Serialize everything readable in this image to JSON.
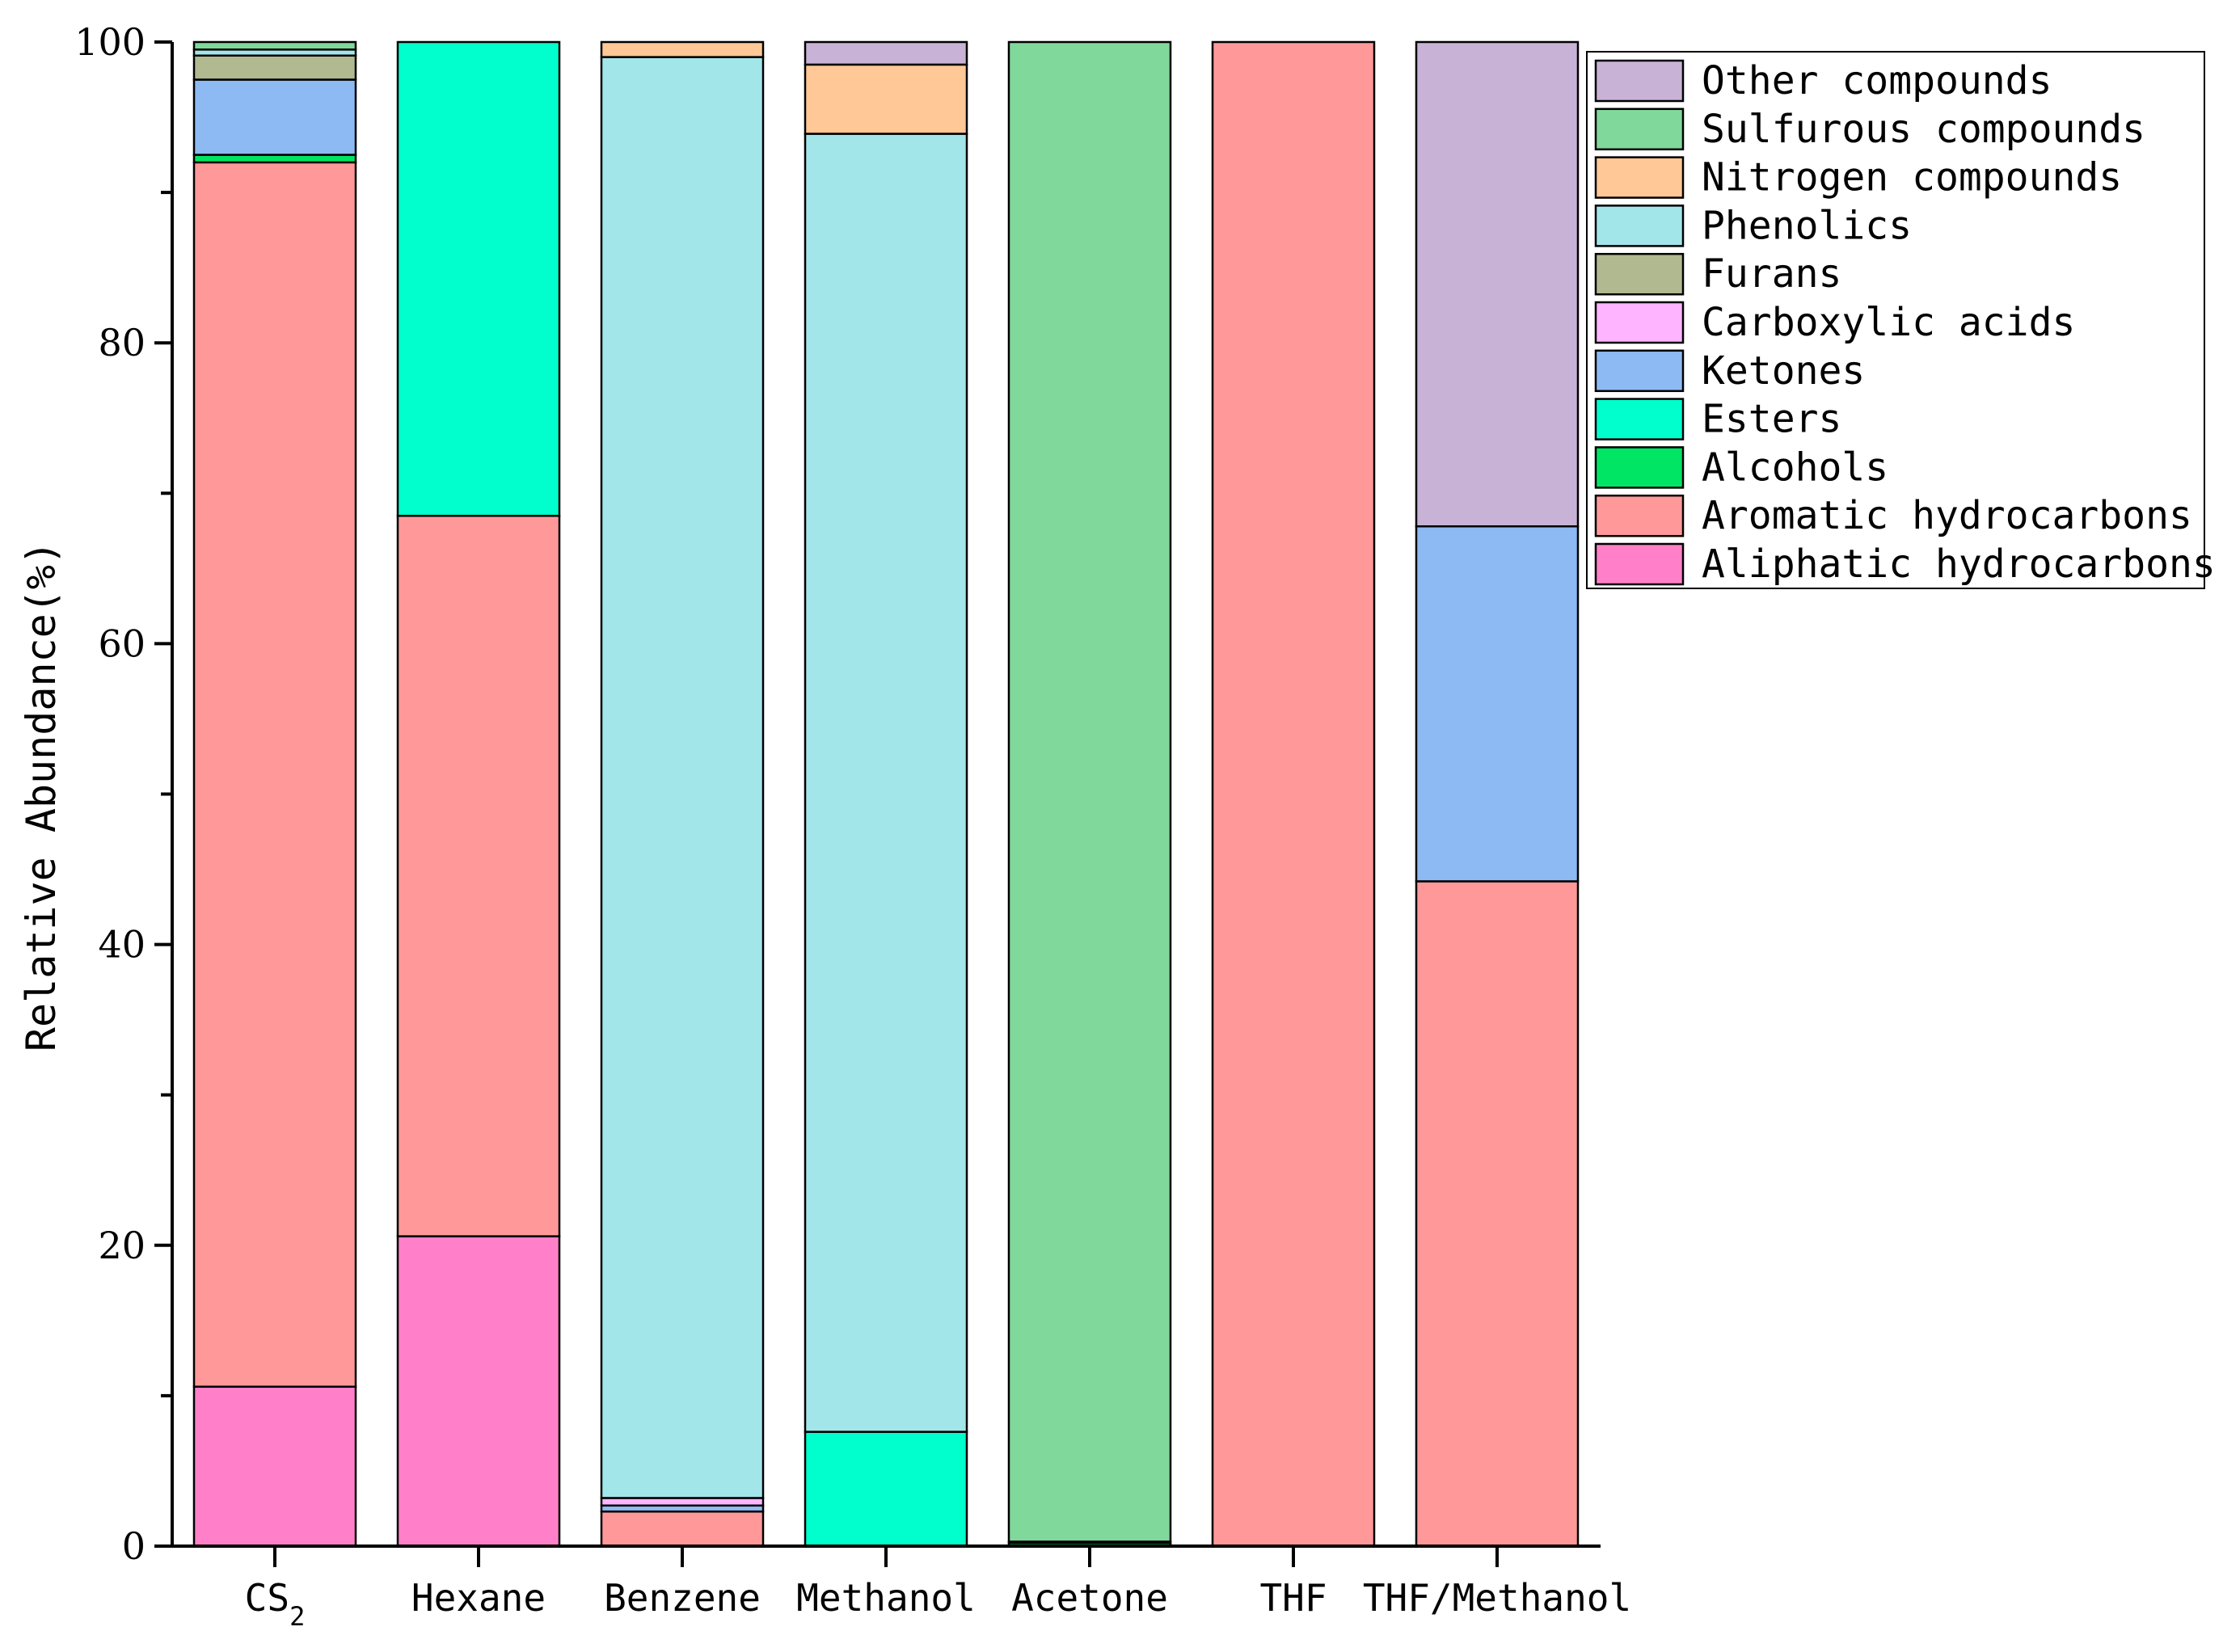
{
  "chart_data": {
    "type": "bar",
    "stacked": true,
    "title": "",
    "xlabel": "",
    "ylabel": "Relative Abundance(%)",
    "ylim": [
      0,
      100
    ],
    "yticks": [
      0,
      20,
      40,
      60,
      80,
      100
    ],
    "grid": false,
    "legend_position": "top-right",
    "categories": [
      "CS2",
      "Hexane",
      "Benzene",
      "Methanol",
      "Acetone",
      "THF",
      "THF/Methanol"
    ],
    "category_labels": [
      {
        "main": "CS",
        "sub": "2"
      },
      {
        "main": "Hexane",
        "sub": ""
      },
      {
        "main": "Benzene",
        "sub": ""
      },
      {
        "main": "Methanol",
        "sub": ""
      },
      {
        "main": "Acetone",
        "sub": ""
      },
      {
        "main": "THF",
        "sub": ""
      },
      {
        "main": "THF/Methanol",
        "sub": ""
      }
    ],
    "series": [
      {
        "name": "Aliphatic hydrocarbons",
        "color": "#FF80C8",
        "values": [
          10.6,
          20.6,
          0,
          0,
          0,
          0,
          0
        ]
      },
      {
        "name": "Aromatic hydrocarbons",
        "color": "#FF9999",
        "values": [
          81.4,
          47.9,
          2.3,
          0,
          0,
          100,
          44.2
        ]
      },
      {
        "name": "Alcohols",
        "color": "#00E564",
        "values": [
          0.5,
          0,
          0,
          0,
          0.2,
          0,
          0
        ]
      },
      {
        "name": "Esters",
        "color": "#00FFCC",
        "values": [
          0,
          31.5,
          0,
          7.6,
          0,
          0,
          0
        ]
      },
      {
        "name": "Ketones",
        "color": "#8EBAF3",
        "values": [
          5.0,
          0,
          0.4,
          0,
          0,
          0,
          23.6
        ]
      },
      {
        "name": "Carboxylic acids",
        "color": "#FFB4FF",
        "values": [
          0,
          0,
          0.5,
          0,
          0,
          0,
          0
        ]
      },
      {
        "name": "Furans",
        "color": "#B0B990",
        "values": [
          1.6,
          0,
          0,
          0,
          0.1,
          0,
          0
        ]
      },
      {
        "name": "Phenolics",
        "color": "#A3E6EA",
        "values": [
          0.4,
          0,
          95.8,
          86.3,
          0,
          0,
          0
        ]
      },
      {
        "name": "Nitrogen compounds",
        "color": "#FFC896",
        "values": [
          0,
          0,
          1.0,
          4.6,
          0,
          0,
          0
        ]
      },
      {
        "name": "Sulfurous compounds",
        "color": "#80D89A",
        "values": [
          0.5,
          0,
          0,
          0,
          99.7,
          0,
          0
        ]
      },
      {
        "name": "Other compounds",
        "color": "#C8B3D7",
        "values": [
          0,
          0,
          0,
          1.5,
          0,
          0,
          32.2
        ]
      }
    ]
  }
}
